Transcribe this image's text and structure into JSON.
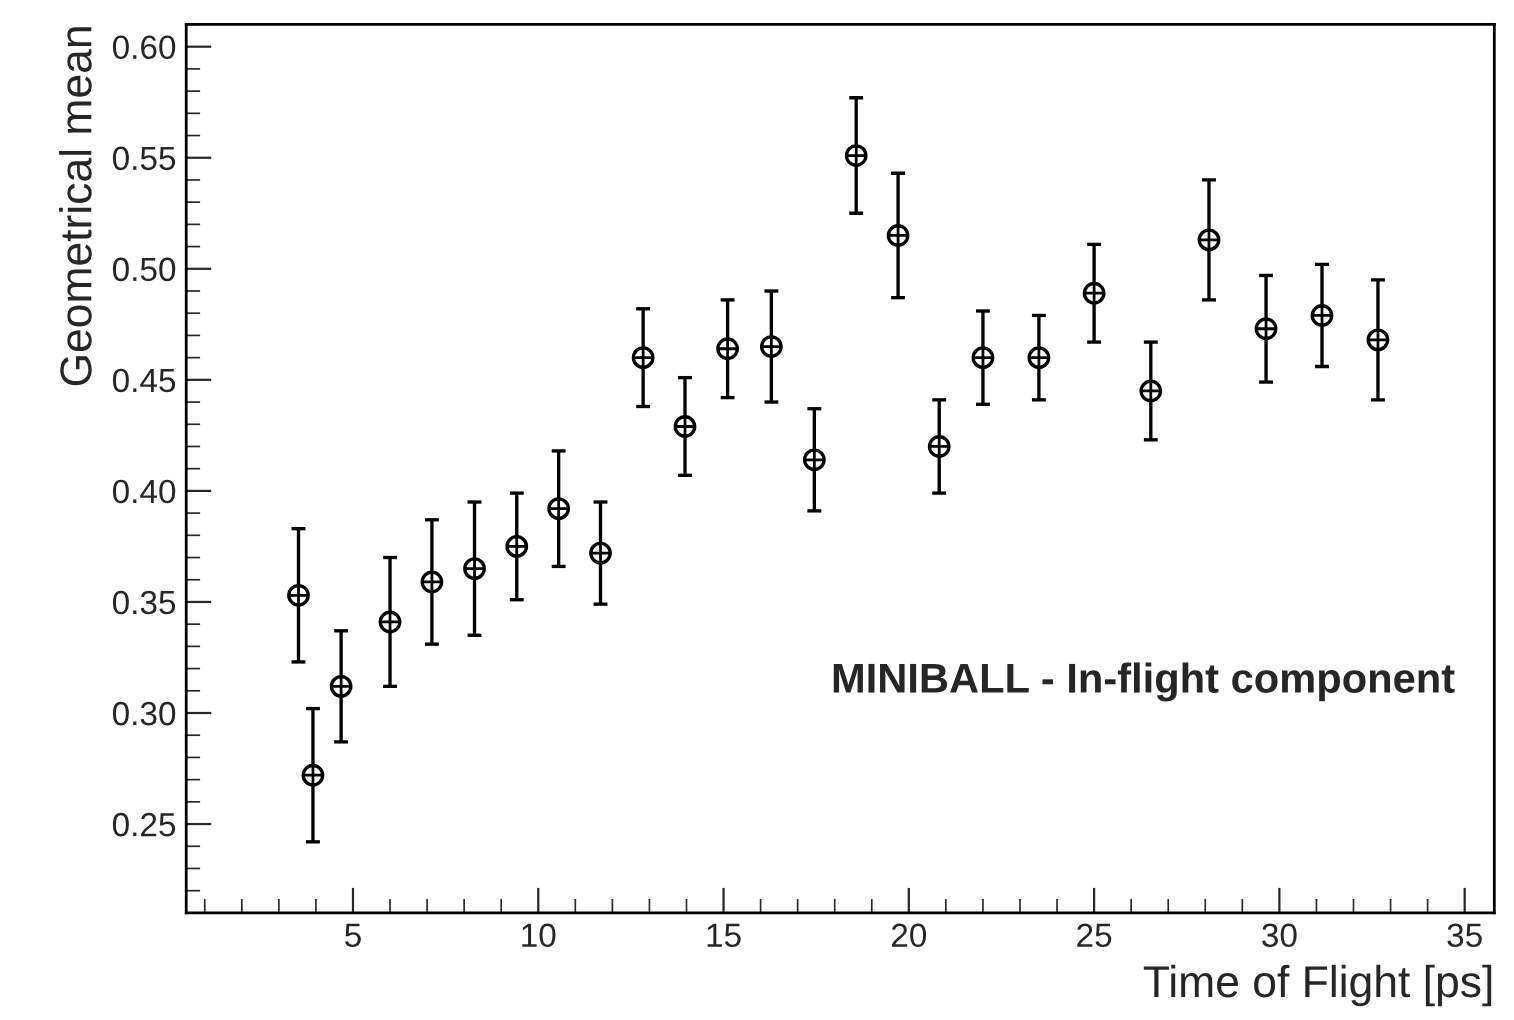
{
  "chart_data": {
    "type": "scatter",
    "xlabel": "Time of Flight [ps]",
    "ylabel": "Geometrical mean",
    "annotations": [
      "MINIBALL - In-flight component"
    ],
    "x": [
      3.53,
      3.92,
      4.68,
      6.0,
      7.13,
      8.28,
      9.42,
      10.55,
      11.68,
      12.83,
      13.96,
      15.11,
      16.29,
      17.45,
      18.58,
      19.71,
      20.82,
      22.0,
      23.51,
      25.0,
      26.53,
      28.1,
      29.64,
      31.15,
      32.66
    ],
    "series": [
      {
        "color": "#000000",
        "values": [
          0.353,
          0.272,
          0.312,
          0.341,
          0.359,
          0.365,
          0.375,
          0.392,
          0.372,
          0.46,
          0.429,
          0.464,
          0.465,
          0.414,
          0.551,
          0.515,
          0.42,
          0.46,
          0.46,
          0.489,
          0.445,
          0.513,
          0.473,
          0.479,
          0.468
        ],
        "errors": [
          0.03,
          0.03,
          0.025,
          0.029,
          0.028,
          0.03,
          0.024,
          0.026,
          0.023,
          0.022,
          0.022,
          0.022,
          0.025,
          0.023,
          0.026,
          0.028,
          0.021,
          0.021,
          0.019,
          0.022,
          0.022,
          0.027,
          0.024,
          0.023,
          0.027
        ]
      }
    ],
    "marker": "circle",
    "grid": false,
    "legend": false,
    "xlim": [
      0.5,
      35.8
    ],
    "xticks": [
      5,
      10,
      15,
      20,
      25,
      30,
      35
    ],
    "ylim": [
      0.21,
      0.61
    ],
    "yticks": [
      0.25,
      {
        "value": 0.3,
        "label": "0.30"
      },
      0.35,
      {
        "value": 0.4,
        "label": "0.40"
      },
      0.45,
      {
        "value": 0.5,
        "label": "0.50"
      },
      0.55,
      {
        "value": 0.6,
        "label": "0.60"
      }
    ]
  }
}
